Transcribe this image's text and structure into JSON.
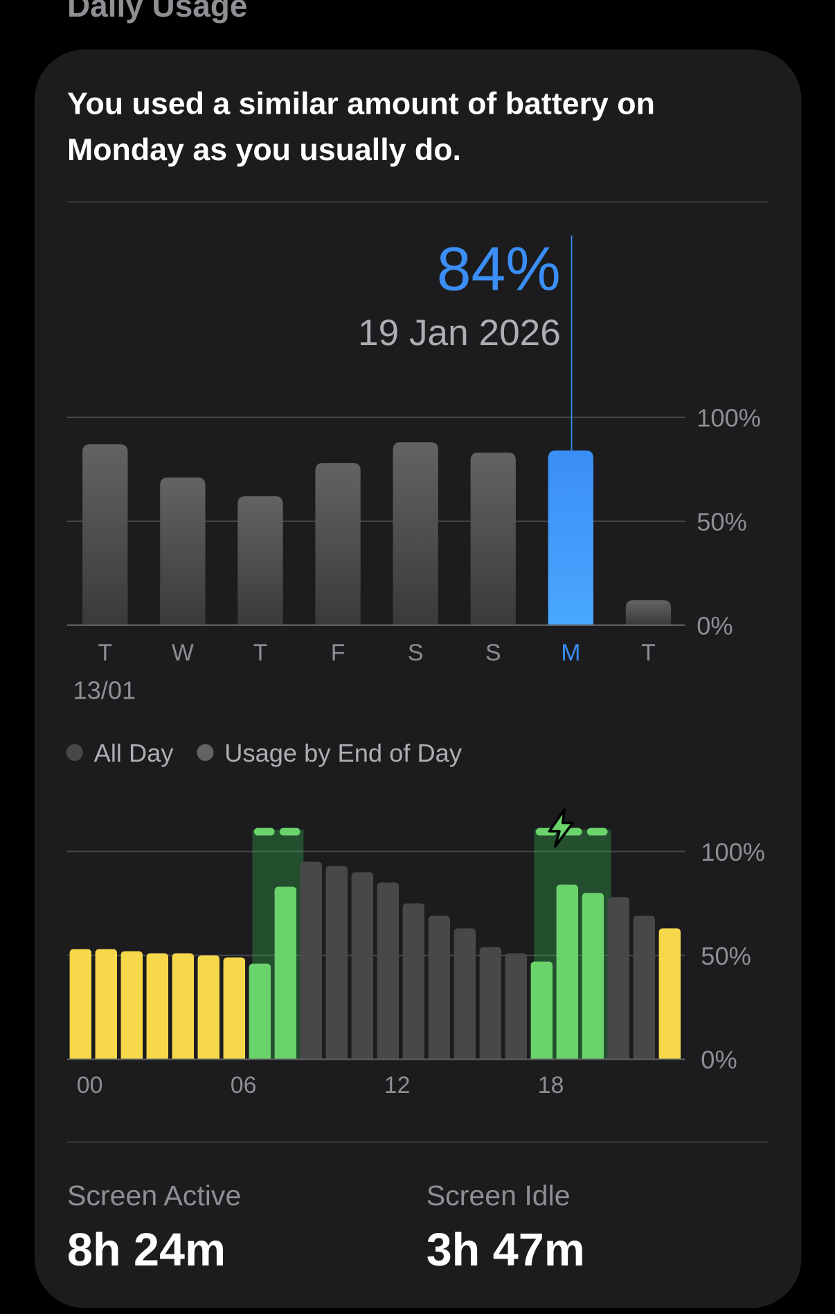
{
  "section_title": "Daily Usage",
  "summary": [
    "You used a similar amount of battery on",
    "Monday as you usually do."
  ],
  "chart_data": [
    {
      "type": "bar",
      "categories": [
        "T",
        "W",
        "T",
        "F",
        "S",
        "S",
        "M",
        "T"
      ],
      "values": [
        87,
        71,
        62,
        78,
        88,
        83,
        84,
        12
      ],
      "start_date": "13/01",
      "highlight_index": 6,
      "selected": {
        "value_label": "84%",
        "date": "19 Jan 2026"
      },
      "color": "#636366",
      "highlight_color": "#3a8ef6",
      "ylim": [
        0,
        100
      ],
      "yticks": [
        {
          "value": 0,
          "label": "0%"
        },
        {
          "value": 50,
          "label": "50%"
        },
        {
          "value": 100,
          "label": "100%"
        }
      ],
      "grid": true,
      "legend": [
        "All Day",
        "Usage by End of Day"
      ]
    },
    {
      "type": "bar",
      "categories": [
        "00",
        null,
        null,
        null,
        null,
        null,
        "06",
        null,
        null,
        null,
        null,
        null,
        "12",
        null,
        null,
        null,
        null,
        null,
        "18",
        null,
        null,
        null,
        null,
        null
      ],
      "values": [
        53,
        53,
        52,
        51,
        51,
        50,
        49,
        46,
        83,
        95,
        93,
        90,
        85,
        75,
        69,
        63,
        54,
        51,
        47,
        84,
        80,
        78,
        69,
        63
      ],
      "colors": [
        "#f7d84a",
        "#f7d84a",
        "#f7d84a",
        "#f7d84a",
        "#f7d84a",
        "#f7d84a",
        "#f7d84a",
        "#6bd36b",
        "#6bd36b",
        "#48484a",
        "#48484a",
        "#48484a",
        "#48484a",
        "#48484a",
        "#48484a",
        "#48484a",
        "#48484a",
        "#48484a",
        "#6bd36b",
        "#6bd36b",
        "#6bd36b",
        "#48484a",
        "#48484a",
        "#f7d84a"
      ],
      "ylim": [
        0,
        100
      ],
      "yticks": [
        {
          "value": 0,
          "label": "0%"
        },
        {
          "value": 50,
          "label": "50%"
        },
        {
          "value": 100,
          "label": "100%"
        }
      ],
      "grid": true
    }
  ],
  "stats": [
    {
      "label": "Screen Active",
      "value": "8h 24m"
    },
    {
      "label": "Screen Idle",
      "value": "3h 47m"
    }
  ]
}
